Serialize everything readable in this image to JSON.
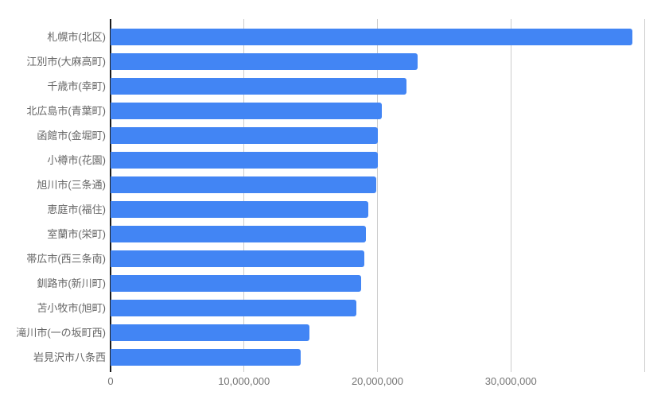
{
  "chart_data": {
    "type": "bar",
    "orientation": "horizontal",
    "title": "",
    "xlabel": "",
    "ylabel": "",
    "legend": "none",
    "grid": "vertical",
    "categories": [
      "札幌市(北区)",
      "江別市(大麻高町)",
      "千歳市(幸町)",
      "北広島市(青葉町)",
      "函館市(金堀町)",
      "小樽市(花園)",
      "旭川市(三条通)",
      "恵庭市(福住)",
      "室蘭市(栄町)",
      "帯広市(西三条南)",
      "釧路市(新川町)",
      "苫小牧市(旭町)",
      "滝川市(一の坂町西)",
      "岩見沢市八条西"
    ],
    "values": [
      39100000,
      23000000,
      22200000,
      20350000,
      20050000,
      20000000,
      19900000,
      19300000,
      19150000,
      19000000,
      18750000,
      18400000,
      14900000,
      14250000
    ],
    "xlim": [
      0,
      40000000
    ],
    "x_ticks": [
      0,
      10000000,
      20000000,
      30000000
    ],
    "x_tick_labels": [
      "0",
      "10,000,000",
      "20,000,000",
      "30,000,000"
    ],
    "gridline_values": [
      10000000,
      20000000,
      30000000,
      40000000
    ],
    "colors": {
      "bar": "#4285f4",
      "gridline": "#cccccc",
      "axis_line": "#1b1b1b",
      "category_label": "#666666",
      "tick_label": "#757575",
      "background": "#ffffff"
    }
  }
}
